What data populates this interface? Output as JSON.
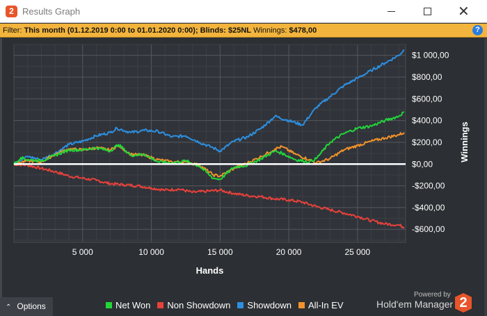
{
  "window": {
    "title": "Results Graph",
    "icon": "hem2-logo-icon"
  },
  "filter_bar": {
    "filter_label": "Filter:",
    "filter_value": "This month (01.12.2019 0:00 to 01.01.2020 0:00); Blinds: $25NL",
    "winnings_label": "Winnings:",
    "winnings_value": "$478,00"
  },
  "options": {
    "label": "Options"
  },
  "branding": {
    "powered_by": "Powered by",
    "product": "Hold'em Manager",
    "logo_char": "2"
  },
  "colors": {
    "net_won": "#22d63a",
    "non_showdown": "#e8413b",
    "showdown": "#2d8fe0",
    "all_in_ev": "#f2922b",
    "zero_line": "#ffffff",
    "plot_bg": "#303339",
    "accent": "#f2b43c"
  },
  "chart_data": {
    "type": "line",
    "title": "",
    "xlabel": "Hands",
    "ylabel": "Winnings",
    "xlim": [
      0,
      28500
    ],
    "ylim": [
      -720,
      1100
    ],
    "x_ticks": [
      5000,
      10000,
      15000,
      20000,
      25000
    ],
    "x_tick_labels": [
      "5 000",
      "10 000",
      "15 000",
      "20 000",
      "25 000"
    ],
    "y_ticks": [
      1000,
      800,
      600,
      400,
      200,
      0,
      -200,
      -400,
      -600
    ],
    "y_tick_labels": [
      "$1 000,00",
      "$800,00",
      "$600,00",
      "$400,00",
      "$200,00",
      "$0,00",
      "-$200,00",
      "-$400,00",
      "-$600,00"
    ],
    "y_axis_side": "right",
    "grid": true,
    "legend_position": "bottom",
    "series": [
      {
        "name": "Net Won",
        "color": "#22d63a",
        "x": [
          0,
          500,
          1000,
          2000,
          3000,
          4000,
          5000,
          6000,
          7000,
          7600,
          8500,
          9500,
          10500,
          11500,
          12500,
          13500,
          14500,
          15000,
          16000,
          17000,
          18000,
          19000,
          19500,
          20500,
          21500,
          22000,
          23000,
          24000,
          25000,
          26000,
          27000,
          28000,
          28400
        ],
        "y": [
          0,
          60,
          40,
          30,
          80,
          130,
          130,
          150,
          120,
          180,
          80,
          90,
          20,
          10,
          30,
          -20,
          -130,
          -140,
          -30,
          -10,
          50,
          120,
          100,
          40,
          20,
          50,
          200,
          280,
          330,
          350,
          400,
          440,
          480
        ]
      },
      {
        "name": "Non Showdown",
        "color": "#e8413b",
        "x": [
          0,
          1000,
          2000,
          3000,
          4000,
          5000,
          6000,
          7000,
          8000,
          9000,
          10000,
          11000,
          12000,
          13000,
          14000,
          15000,
          16000,
          17000,
          18000,
          19000,
          20000,
          21000,
          22000,
          23000,
          24000,
          25000,
          26000,
          27000,
          28000,
          28400
        ],
        "y": [
          0,
          -10,
          -40,
          -70,
          -110,
          -130,
          -150,
          -180,
          -190,
          -200,
          -220,
          -240,
          -230,
          -260,
          -250,
          -240,
          -270,
          -290,
          -300,
          -320,
          -330,
          -350,
          -390,
          -420,
          -450,
          -480,
          -520,
          -550,
          -560,
          -580
        ]
      },
      {
        "name": "Showdown",
        "color": "#2d8fe0",
        "x": [
          0,
          1000,
          2000,
          3000,
          4000,
          5000,
          6000,
          7000,
          7500,
          8500,
          9500,
          10500,
          11500,
          12500,
          13500,
          14500,
          15000,
          16000,
          17000,
          18000,
          19000,
          20000,
          21000,
          22000,
          23000,
          24000,
          25000,
          26000,
          27000,
          28000,
          28400
        ],
        "y": [
          0,
          70,
          40,
          100,
          180,
          210,
          260,
          290,
          330,
          290,
          310,
          300,
          250,
          260,
          200,
          150,
          120,
          210,
          250,
          330,
          440,
          400,
          360,
          520,
          620,
          720,
          790,
          860,
          930,
          1000,
          1050
        ]
      },
      {
        "name": "All-In EV",
        "color": "#f2922b",
        "x": [
          0,
          1000,
          2000,
          3000,
          4000,
          5000,
          6000,
          7000,
          7600,
          8500,
          9500,
          10500,
          11500,
          12500,
          13500,
          14500,
          15000,
          16000,
          17000,
          18000,
          19000,
          19500,
          20500,
          21500,
          22000,
          23000,
          24000,
          25000,
          26000,
          27000,
          28000,
          28400
        ],
        "y": [
          0,
          30,
          20,
          90,
          140,
          130,
          150,
          130,
          170,
          90,
          80,
          40,
          20,
          20,
          -10,
          -100,
          -110,
          -40,
          10,
          70,
          140,
          160,
          90,
          40,
          10,
          50,
          130,
          170,
          210,
          240,
          270,
          290
        ]
      }
    ]
  }
}
